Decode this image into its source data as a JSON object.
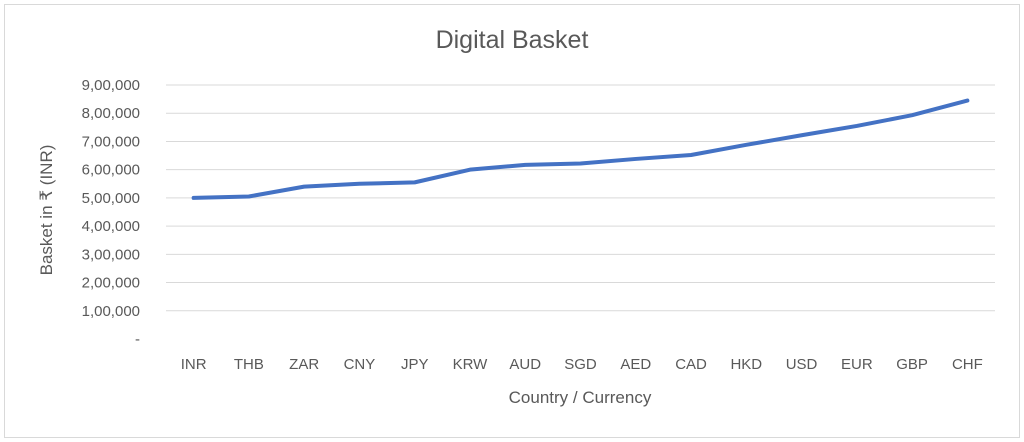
{
  "chart_data": {
    "type": "line",
    "title": "Digital Basket",
    "xlabel": "Country / Currency",
    "ylabel": "Basket in ₹ (INR)",
    "categories": [
      "INR",
      "THB",
      "ZAR",
      "CNY",
      "JPY",
      "KRW",
      "AUD",
      "SGD",
      "AED",
      "CAD",
      "HKD",
      "USD",
      "EUR",
      "GBP",
      "CHF"
    ],
    "series": [
      {
        "values": [
          500000,
          505000,
          540000,
          550000,
          555000,
          600000,
          617000,
          622000,
          638000,
          652000,
          688000,
          722000,
          755000,
          793000,
          845000
        ],
        "color": "#4472c4"
      }
    ],
    "ylim": [
      0,
      900000
    ],
    "y_tick_labels": [
      "-",
      "1,00,000",
      "2,00,000",
      "3,00,000",
      "4,00,000",
      "5,00,000",
      "6,00,000",
      "7,00,000",
      "8,00,000",
      "9,00,000"
    ],
    "grid": true,
    "legend": "none"
  }
}
